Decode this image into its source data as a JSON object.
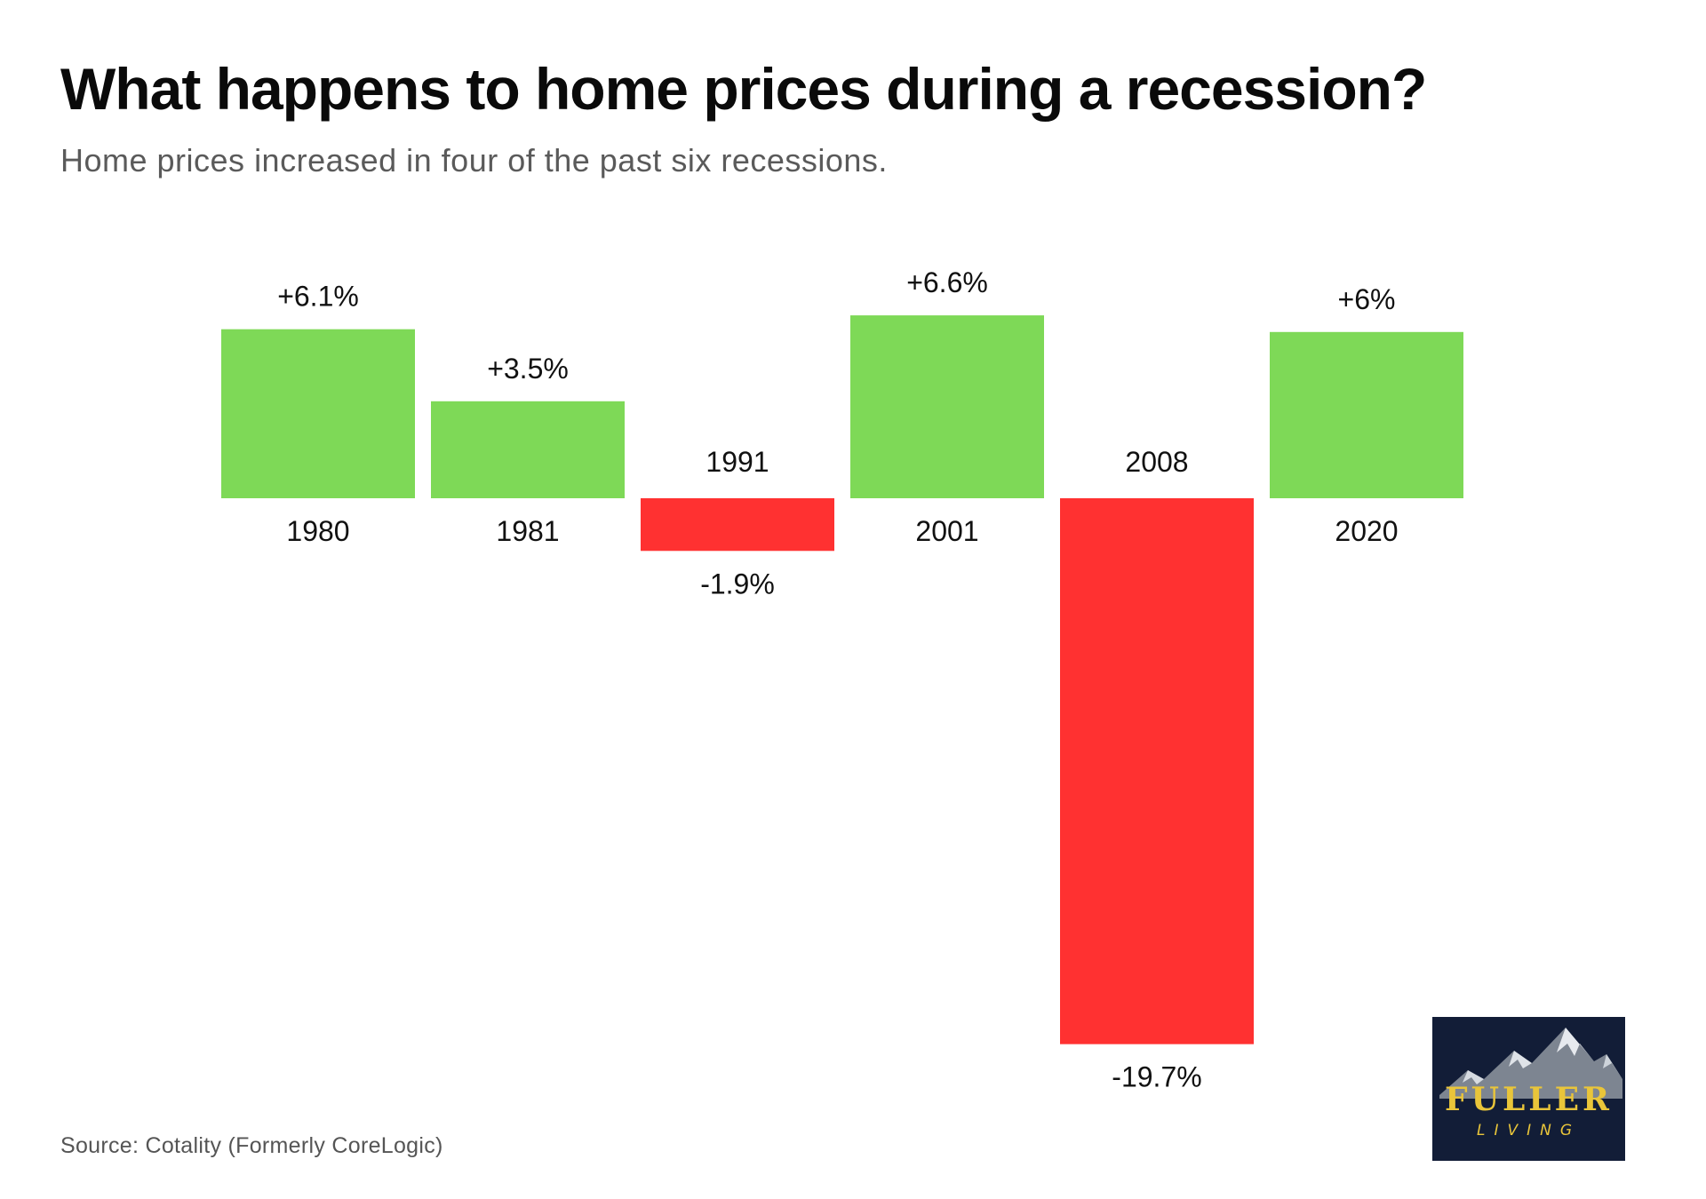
{
  "header": {
    "title": "What happens to home prices during a recession?",
    "subtitle": "Home prices increased in four of the past six recessions."
  },
  "footer": {
    "source": "Source: Cotality (Formerly CoreLogic)"
  },
  "logo": {
    "word": "FULLER",
    "sub": "LIVING",
    "background": "#121d37",
    "text_color": "#e9c53a"
  },
  "colors": {
    "positive": "#7ed957",
    "negative": "#ff3131"
  },
  "chart_data": {
    "type": "bar",
    "categories": [
      "1980",
      "1981",
      "1991",
      "2001",
      "2008",
      "2020"
    ],
    "values": [
      6.1,
      3.5,
      -1.9,
      6.6,
      -19.7,
      6.0
    ],
    "data_labels": [
      "+6.1%",
      "+3.5%",
      "-1.9%",
      "+6.6%",
      "-19.7%",
      "+6%"
    ],
    "xlabel": "",
    "ylabel": "",
    "ylim": [
      -19.7,
      6.6
    ],
    "grid": false,
    "legend": "none",
    "axis_visible": false
  }
}
